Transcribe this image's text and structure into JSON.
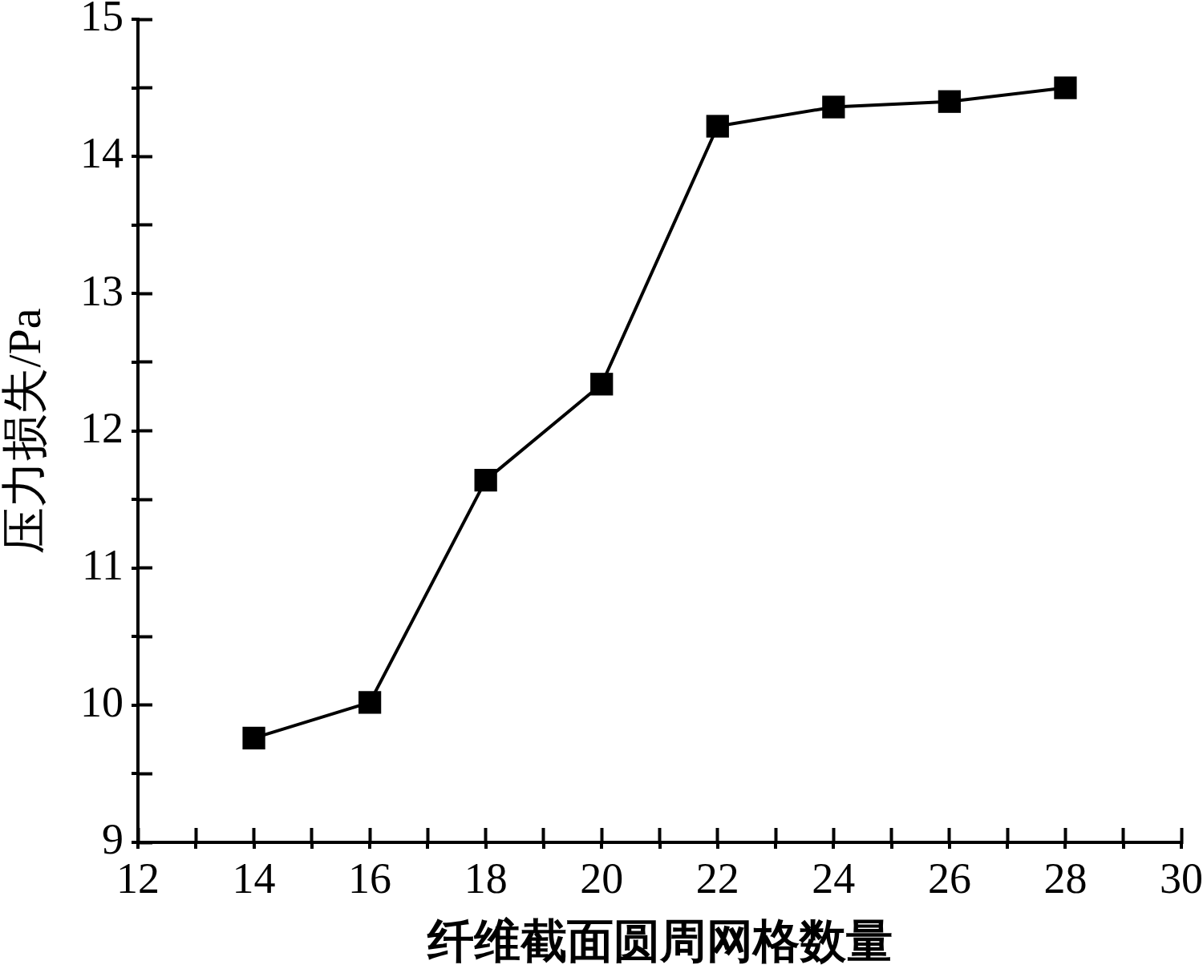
{
  "chart_data": {
    "type": "line",
    "xlabel": "纤维截面圆周网格数量",
    "ylabel": "压力损失/Pa",
    "x": [
      14,
      16,
      18,
      20,
      22,
      24,
      26,
      28
    ],
    "series": [
      {
        "color": "#000000",
        "values": [
          9.76,
          10.02,
          11.64,
          12.34,
          14.22,
          14.36,
          14.4,
          14.5
        ]
      }
    ],
    "xlim": [
      12,
      30
    ],
    "xticks": [
      12,
      {
        "value": 13,
        "label": null
      },
      14,
      {
        "value": 15,
        "label": null
      },
      16,
      {
        "value": 17,
        "label": null
      },
      18,
      {
        "value": 19,
        "label": null
      },
      20,
      {
        "value": 21,
        "label": null
      },
      22,
      {
        "value": 23,
        "label": null
      },
      24,
      {
        "value": 25,
        "label": null
      },
      26,
      {
        "value": 27,
        "label": null
      },
      28,
      {
        "value": 29,
        "label": null
      },
      30
    ],
    "ylim": [
      9,
      15
    ],
    "yticks": [
      9,
      {
        "value": 9.5,
        "label": null
      },
      10,
      {
        "value": 10.5,
        "label": null
      },
      11,
      {
        "value": 11.5,
        "label": null
      },
      12,
      {
        "value": 12.5,
        "label": null
      },
      13,
      {
        "value": 13.5,
        "label": null
      },
      14,
      {
        "value": 14.5,
        "label": null
      },
      15
    ],
    "marker": "square",
    "line_style": "solid"
  }
}
